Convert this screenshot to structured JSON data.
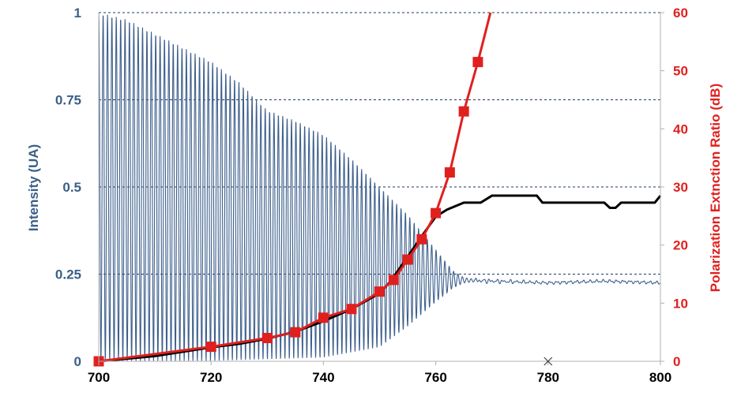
{
  "chart_data": {
    "type": "line",
    "title": "",
    "xlabel": "",
    "xlim": [
      700,
      800
    ],
    "x_ticks": [
      700,
      720,
      740,
      760,
      780,
      800
    ],
    "ylabel_left": "Intensity (UA)",
    "ylim_left": [
      0,
      1
    ],
    "y_ticks_left": [
      "0",
      "0.25",
      "0.5",
      "0.75",
      "1"
    ],
    "ylabel_right": "Polarization Extnction Ratio (dB)",
    "ylim_right": [
      0,
      60
    ],
    "y_ticks_right": [
      "0",
      "10",
      "20",
      "30",
      "40",
      "50",
      "60"
    ],
    "grid": "horizontal dashed",
    "colors": {
      "left_axis": "#3b5f87",
      "right_axis": "#e0201e",
      "spectrum": "#3d5f8c",
      "extinction": "#e0201e",
      "envelope": "#000000",
      "grid": "#1f3864"
    },
    "series": [
      {
        "axis": "left",
        "style": "oscillating spectrum",
        "envelope_max": [
          [
            700,
            1.0
          ],
          [
            705,
            0.98
          ],
          [
            710,
            0.94
          ],
          [
            715,
            0.9
          ],
          [
            720,
            0.86
          ],
          [
            725,
            0.8
          ],
          [
            730,
            0.72
          ],
          [
            735,
            0.69
          ],
          [
            740,
            0.65
          ],
          [
            745,
            0.58
          ],
          [
            750,
            0.5
          ],
          [
            755,
            0.42
          ],
          [
            760,
            0.32
          ],
          [
            763,
            0.26
          ],
          [
            765,
            0.24
          ],
          [
            767,
            0.235
          ],
          [
            780,
            0.225
          ],
          [
            790,
            0.23
          ],
          [
            800,
            0.225
          ]
        ],
        "envelope_min": [
          [
            700,
            0.0
          ],
          [
            720,
            0.0
          ],
          [
            740,
            0.01
          ],
          [
            750,
            0.04
          ],
          [
            755,
            0.1
          ],
          [
            760,
            0.17
          ],
          [
            763,
            0.21
          ],
          [
            765,
            0.225
          ],
          [
            767,
            0.228
          ],
          [
            780,
            0.225
          ],
          [
            790,
            0.23
          ],
          [
            800,
            0.225
          ]
        ]
      },
      {
        "axis": "left",
        "style": "smooth black line",
        "x": [
          700,
          710,
          720,
          725,
          730,
          735,
          740,
          745,
          750,
          752,
          755,
          758,
          760,
          762,
          765,
          768,
          770,
          778,
          779,
          790,
          791,
          792,
          793,
          799,
          800
        ],
        "values": [
          0.0,
          0.015,
          0.04,
          0.05,
          0.065,
          0.085,
          0.115,
          0.15,
          0.195,
          0.23,
          0.3,
          0.37,
          0.415,
          0.435,
          0.455,
          0.455,
          0.475,
          0.475,
          0.455,
          0.455,
          0.44,
          0.44,
          0.455,
          0.455,
          0.475
        ]
      },
      {
        "axis": "right",
        "style": "line with square markers",
        "x": [
          700,
          720,
          730,
          735,
          740,
          745,
          750,
          752.5,
          755,
          757.5,
          760,
          762.5,
          765,
          767.5
        ],
        "values": [
          0,
          2.5,
          4.0,
          5.0,
          7.5,
          9.0,
          12.0,
          14.0,
          17.5,
          21.0,
          25.5,
          32.5,
          43.0,
          51.5
        ],
        "line_continues_to": [
          770,
          61
        ]
      }
    ],
    "annotations": [
      {
        "type": "x-marker",
        "x": 780,
        "y_left": 0
      }
    ]
  }
}
